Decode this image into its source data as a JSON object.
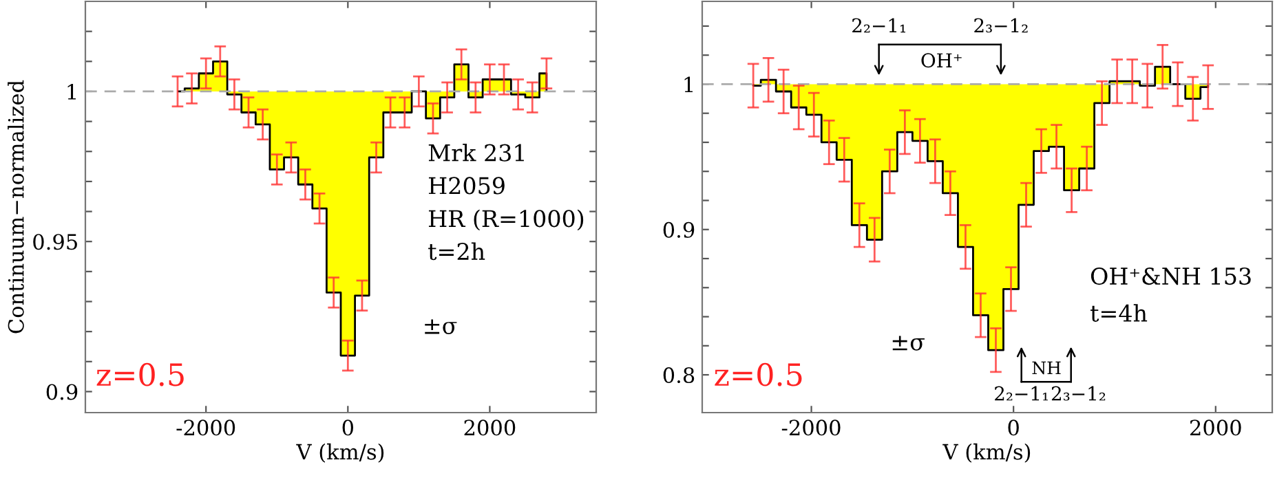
{
  "chart_data": [
    {
      "type": "area",
      "xlabel": "V (km/s)",
      "ylabel": "Continuum−normalized",
      "x": [
        -2400,
        -2200,
        -2000,
        -1800,
        -1600,
        -1400,
        -1200,
        -1000,
        -800,
        -600,
        -400,
        -200,
        0,
        200,
        400,
        600,
        800,
        1000,
        1200,
        1400,
        1600,
        1800,
        2000,
        2200,
        2400,
        2600,
        2800
      ],
      "series": [
        {
          "color": "#ffff00",
          "values": [
            1.0,
            1.001,
            1.006,
            1.01,
            0.999,
            0.993,
            0.989,
            0.974,
            0.978,
            0.969,
            0.961,
            0.933,
            0.912,
            0.932,
            0.978,
            0.993,
            0.993,
            1.0,
            0.991,
            0.998,
            1.009,
            0.998,
            1.004,
            1.004,
            0.999,
            0.998,
            1.006
          ],
          "errors": [
            0.005,
            0.005,
            0.005,
            0.005,
            0.005,
            0.005,
            0.005,
            0.005,
            0.005,
            0.005,
            0.005,
            0.005,
            0.005,
            0.005,
            0.005,
            0.005,
            0.005,
            0.005,
            0.005,
            0.005,
            0.005,
            0.005,
            0.005,
            0.005,
            0.005,
            0.005,
            0.005
          ]
        }
      ],
      "xlim": [
        -3700,
        3500
      ],
      "xticks": [
        -2000,
        0,
        2000
      ],
      "ylim": [
        0.893,
        1.03
      ],
      "yticks": [
        {
          "value": 0.9,
          "label": "0.9"
        },
        {
          "value": 0.91,
          "label": null
        },
        {
          "value": 0.92,
          "label": null
        },
        {
          "value": 0.93,
          "label": null
        },
        {
          "value": 0.94,
          "label": null
        },
        {
          "value": 0.95,
          "label": "0.95"
        },
        {
          "value": 0.96,
          "label": null
        },
        {
          "value": 0.97,
          "label": null
        },
        {
          "value": 0.98,
          "label": null
        },
        {
          "value": 0.99,
          "label": null
        },
        {
          "value": 1,
          "label": "1"
        },
        {
          "value": 1.01,
          "label": null
        },
        {
          "value": 1.02,
          "label": null
        }
      ],
      "ref_lines": [
        {
          "axis": "y",
          "value": 1,
          "color": "#aaaaaa",
          "line_style": "dashed"
        }
      ],
      "annotations": [
        "Mrk 231",
        "H2059",
        "HR (R=1000)",
        "t=2h",
        "±σ",
        "z=0.5"
      ],
      "grid": false,
      "legend": false
    },
    {
      "type": "area",
      "xlabel": "V (km/s)",
      "x": [
        -2575,
        -2425,
        -2275,
        -2125,
        -1975,
        -1825,
        -1675,
        -1525,
        -1375,
        -1225,
        -1075,
        -925,
        -775,
        -625,
        -475,
        -325,
        -175,
        -25,
        125,
        275,
        425,
        575,
        725,
        875,
        1025,
        1175,
        1325,
        1475,
        1625,
        1775,
        1925
      ],
      "series": [
        {
          "color": "#ffff00",
          "values": [
            0.999,
            1.003,
            0.995,
            0.984,
            0.979,
            0.96,
            0.948,
            0.903,
            0.893,
            0.94,
            0.967,
            0.961,
            0.947,
            0.925,
            0.888,
            0.841,
            0.817,
            0.859,
            0.917,
            0.954,
            0.957,
            0.927,
            0.942,
            0.987,
            1.002,
            1.002,
            0.999,
            1.012,
            1.0,
            0.99,
            0.998
          ],
          "errors": [
            0.015,
            0.015,
            0.015,
            0.015,
            0.015,
            0.015,
            0.015,
            0.015,
            0.015,
            0.015,
            0.015,
            0.015,
            0.015,
            0.015,
            0.015,
            0.015,
            0.015,
            0.015,
            0.015,
            0.015,
            0.015,
            0.015,
            0.015,
            0.015,
            0.015,
            0.015,
            0.015,
            0.015,
            0.015,
            0.015,
            0.015
          ]
        }
      ],
      "xlim": [
        -3080,
        2560
      ],
      "xticks": [
        -2000,
        0,
        2000
      ],
      "ylim": [
        0.774,
        1.057
      ],
      "yticks": [
        {
          "value": 0.8,
          "label": "0.8"
        },
        {
          "value": 0.82,
          "label": null
        },
        {
          "value": 0.84,
          "label": null
        },
        {
          "value": 0.86,
          "label": null
        },
        {
          "value": 0.88,
          "label": null
        },
        {
          "value": 0.9,
          "label": "0.9"
        },
        {
          "value": 0.92,
          "label": null
        },
        {
          "value": 0.94,
          "label": null
        },
        {
          "value": 0.96,
          "label": null
        },
        {
          "value": 0.98,
          "label": null
        },
        {
          "value": 1,
          "label": "1"
        },
        {
          "value": 1.02,
          "label": null
        },
        {
          "value": 1.04,
          "label": null
        }
      ],
      "ref_lines": [
        {
          "axis": "y",
          "value": 1,
          "color": "#aaaaaa",
          "line_style": "dashed"
        }
      ],
      "annotations": [
        "2₂−1₁",
        "2₃−1₂",
        "OH⁺",
        "2₂−1₁",
        "2₃−1₂",
        "NH",
        "OH⁺&NH 153",
        "t=4h",
        "±σ",
        "z=0.5"
      ],
      "grid": false,
      "legend": false
    }
  ]
}
